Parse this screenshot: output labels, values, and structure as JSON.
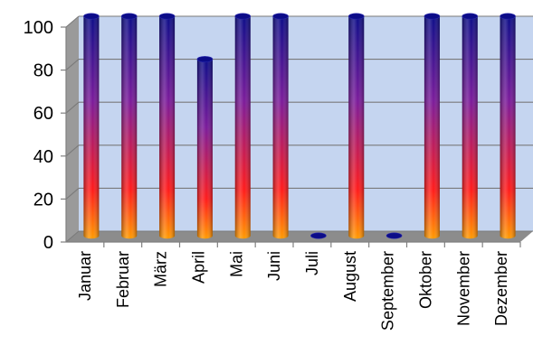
{
  "chart_data": {
    "type": "bar",
    "title": "",
    "xlabel": "",
    "ylabel": "",
    "ylim": [
      0,
      100
    ],
    "yticks": [
      0,
      20,
      40,
      60,
      80,
      100
    ],
    "categories": [
      "Januar",
      "Februar",
      "März",
      "April",
      "Mai",
      "Juni",
      "Juli",
      "August",
      "September",
      "Oktober",
      "November",
      "Dezember"
    ],
    "values": [
      100,
      100,
      100,
      80,
      100,
      100,
      0,
      100,
      0,
      100,
      100,
      100
    ],
    "grid": true,
    "legend": "none",
    "style": "3d-cylinder",
    "colors": {
      "plot_back": "#c5d5f0",
      "floor": "#8c8c8c",
      "side_wall": "#9a9a9a",
      "gridline": "#7a7a7a",
      "bar_top": "#0c0c88",
      "bar_mid": "#7a1a9a",
      "bar_low": "#ff1a1a",
      "bar_base": "#ff9a00"
    }
  }
}
